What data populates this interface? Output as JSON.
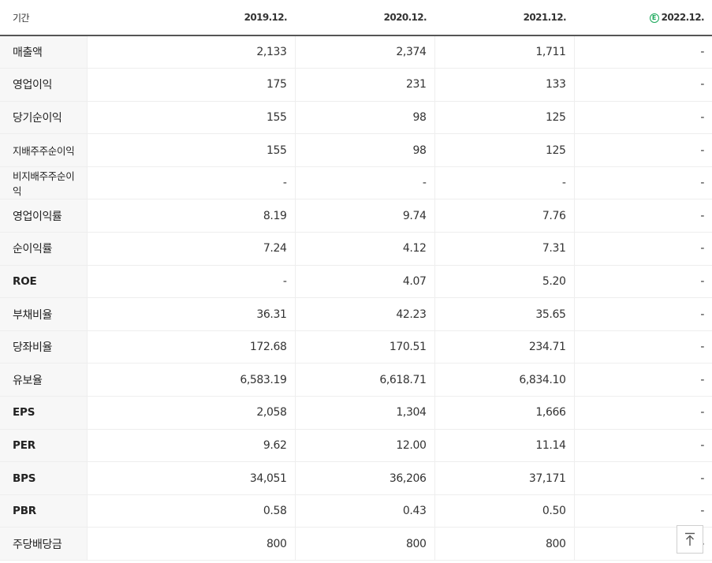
{
  "header": {
    "label": "기간",
    "periods": [
      "2019.12.",
      "2020.12.",
      "2021.12.",
      "2022.12."
    ],
    "estimate_badge": "E",
    "estimate_badge_color": "#1aa85a"
  },
  "rows": [
    {
      "label": "매출액",
      "values": [
        "2,133",
        "2,374",
        "1,711",
        "-"
      ]
    },
    {
      "label": "영업이익",
      "values": [
        "175",
        "231",
        "133",
        "-"
      ]
    },
    {
      "label": "당기순이익",
      "values": [
        "155",
        "98",
        "125",
        "-"
      ]
    },
    {
      "label": "지배주주순이익",
      "values": [
        "155",
        "98",
        "125",
        "-"
      ]
    },
    {
      "label": "비지배주주순이익",
      "values": [
        "-",
        "-",
        "-",
        "-"
      ]
    },
    {
      "label": "영업이익률",
      "values": [
        "8.19",
        "9.74",
        "7.76",
        "-"
      ]
    },
    {
      "label": "순이익률",
      "values": [
        "7.24",
        "4.12",
        "7.31",
        "-"
      ]
    },
    {
      "label": "ROE",
      "values": [
        "-",
        "4.07",
        "5.20",
        "-"
      ]
    },
    {
      "label": "부채비율",
      "values": [
        "36.31",
        "42.23",
        "35.65",
        "-"
      ]
    },
    {
      "label": "당좌비율",
      "values": [
        "172.68",
        "170.51",
        "234.71",
        "-"
      ]
    },
    {
      "label": "유보율",
      "values": [
        "6,583.19",
        "6,618.71",
        "6,834.10",
        "-"
      ]
    },
    {
      "label": "EPS",
      "values": [
        "2,058",
        "1,304",
        "1,666",
        "-"
      ]
    },
    {
      "label": "PER",
      "values": [
        "9.62",
        "12.00",
        "11.14",
        "-"
      ]
    },
    {
      "label": "BPS",
      "values": [
        "34,051",
        "36,206",
        "37,171",
        "-"
      ]
    },
    {
      "label": "PBR",
      "values": [
        "0.58",
        "0.43",
        "0.50",
        "-"
      ]
    },
    {
      "label": "주당배당금",
      "values": [
        "800",
        "800",
        "800",
        "-"
      ]
    }
  ],
  "scroll_top_icon": "arrow-up-to-top-icon"
}
